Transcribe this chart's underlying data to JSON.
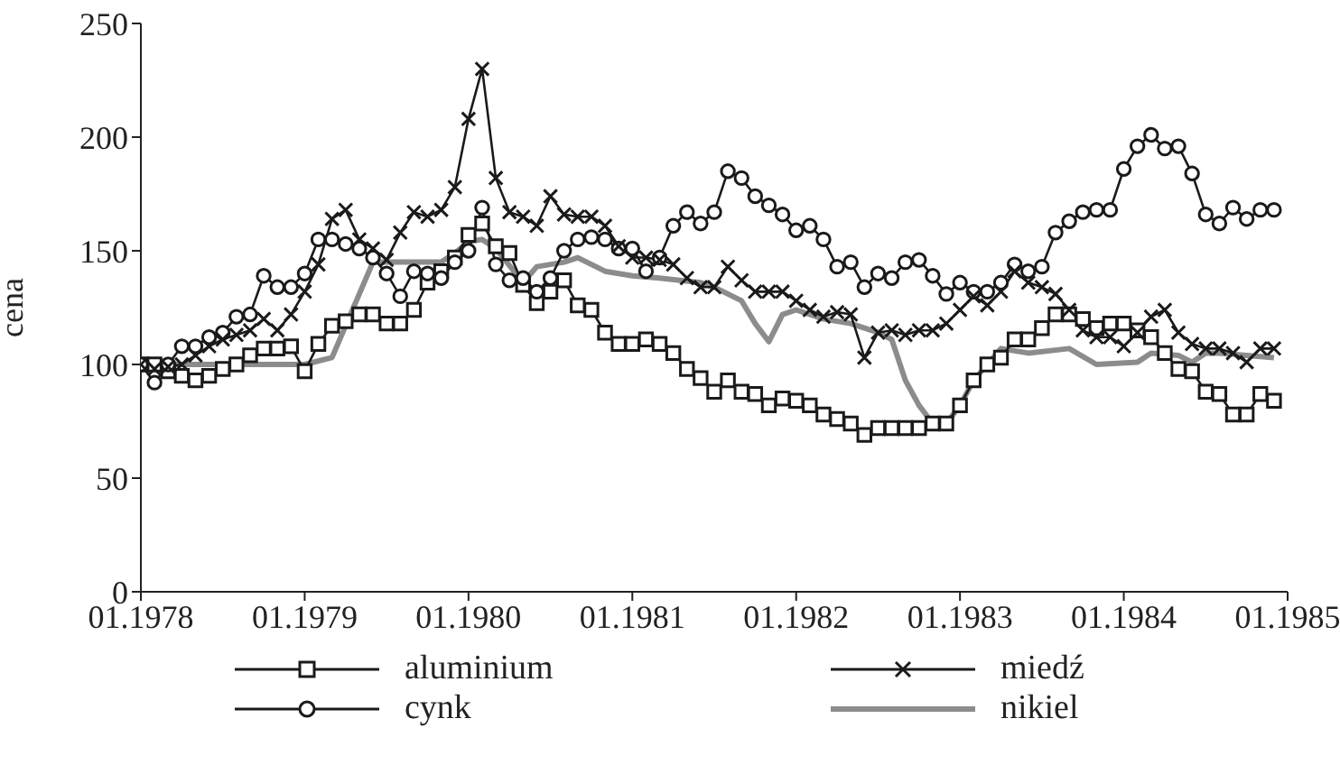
{
  "chart_data": {
    "type": "line",
    "ylabel": "cena",
    "legend": "bottom",
    "grid": false,
    "xlim": [
      "1978-01",
      "1985-01"
    ],
    "xticks": [
      {
        "value": "1978-01",
        "label": "01.1978"
      },
      {
        "value": "1979-01",
        "label": "01.1979"
      },
      {
        "value": "1980-01",
        "label": "01.1980"
      },
      {
        "value": "1981-01",
        "label": "01.1981"
      },
      {
        "value": "1982-01",
        "label": "01.1982"
      },
      {
        "value": "1983-01",
        "label": "01.1983"
      },
      {
        "value": "1984-01",
        "label": "01.1984"
      },
      {
        "value": "1985-01",
        "label": "01.1985"
      }
    ],
    "ylim": [
      0,
      250
    ],
    "yticks": [
      0,
      50,
      100,
      150,
      200,
      250
    ],
    "x": [
      "1978-01",
      "1978-02",
      "1978-03",
      "1978-04",
      "1978-05",
      "1978-06",
      "1978-07",
      "1978-08",
      "1978-09",
      "1978-10",
      "1978-11",
      "1978-12",
      "1979-01",
      "1979-02",
      "1979-03",
      "1979-04",
      "1979-05",
      "1979-06",
      "1979-07",
      "1979-08",
      "1979-09",
      "1979-10",
      "1979-11",
      "1979-12",
      "1980-01",
      "1980-02",
      "1980-03",
      "1980-04",
      "1980-05",
      "1980-06",
      "1980-07",
      "1980-08",
      "1980-09",
      "1980-10",
      "1980-11",
      "1980-12",
      "1981-01",
      "1981-02",
      "1981-03",
      "1981-04",
      "1981-05",
      "1981-06",
      "1981-07",
      "1981-08",
      "1981-09",
      "1981-10",
      "1981-11",
      "1981-12",
      "1982-01",
      "1982-02",
      "1982-03",
      "1982-04",
      "1982-05",
      "1982-06",
      "1982-07",
      "1982-08",
      "1982-09",
      "1982-10",
      "1982-11",
      "1982-12",
      "1983-01",
      "1983-02",
      "1983-03",
      "1983-04",
      "1983-05",
      "1983-06",
      "1983-07",
      "1983-08",
      "1983-09",
      "1983-10",
      "1983-11",
      "1983-12",
      "1984-01",
      "1984-02",
      "1984-03",
      "1984-04",
      "1984-05",
      "1984-06",
      "1984-07",
      "1984-08",
      "1984-09",
      "1984-10",
      "1984-11",
      "1984-12"
    ],
    "series": [
      {
        "name": "aluminium",
        "color": "#1a1a1a",
        "marker": "square",
        "values": [
          100,
          100,
          97,
          95,
          93,
          95,
          98,
          100,
          104,
          107,
          107,
          108,
          97,
          109,
          117,
          119,
          122,
          122,
          118,
          118,
          124,
          136,
          141,
          147,
          157,
          162,
          152,
          149,
          135,
          127,
          132,
          137,
          126,
          124,
          114,
          109,
          109,
          111,
          109,
          105,
          98,
          94,
          88,
          93,
          88,
          87,
          82,
          85,
          84,
          82,
          78,
          76,
          74,
          69,
          72,
          72,
          72,
          72,
          74,
          74,
          82,
          93,
          100,
          103,
          111,
          111,
          116,
          122,
          122,
          120,
          116,
          118,
          118,
          115,
          112,
          105,
          98,
          97,
          88,
          87,
          78,
          78,
          87,
          84
        ]
      },
      {
        "name": "cynk",
        "color": "#1a1a1a",
        "marker": "circle",
        "values": [
          100,
          92,
          100,
          108,
          108,
          112,
          114,
          121,
          122,
          139,
          134,
          134,
          140,
          155,
          155,
          153,
          151,
          147,
          140,
          130,
          141,
          140,
          138,
          145,
          150,
          169,
          144,
          137,
          138,
          132,
          138,
          150,
          155,
          156,
          155,
          151,
          151,
          141,
          147,
          161,
          167,
          162,
          167,
          185,
          182,
          174,
          170,
          166,
          159,
          161,
          155,
          143,
          145,
          134,
          140,
          138,
          145,
          146,
          139,
          131,
          136,
          132,
          132,
          136,
          144,
          141,
          143,
          158,
          163,
          167,
          168,
          168,
          186,
          196,
          201,
          195,
          196,
          184,
          166,
          162,
          169,
          164,
          168,
          168
        ]
      },
      {
        "name": "miedź",
        "color": "#1a1a1a",
        "marker": "cross",
        "values": [
          100,
          98,
          99,
          100,
          104,
          108,
          111,
          113,
          115,
          120,
          115,
          122,
          132,
          144,
          164,
          168,
          155,
          151,
          146,
          158,
          167,
          165,
          168,
          178,
          208,
          230,
          182,
          167,
          165,
          161,
          174,
          166,
          165,
          165,
          161,
          152,
          147,
          147,
          146,
          144,
          138,
          134,
          134,
          143,
          137,
          132,
          132,
          132,
          128,
          124,
          121,
          123,
          122,
          103,
          114,
          115,
          113,
          115,
          115,
          118,
          124,
          130,
          126,
          132,
          141,
          136,
          134,
          131,
          124,
          115,
          112,
          112,
          108,
          114,
          121,
          124,
          114,
          109,
          107,
          107,
          105,
          101,
          107,
          107
        ]
      },
      {
        "name": "nikiel",
        "color": "#8c8c8c",
        "marker": "none",
        "x": [
          "1978-01",
          "1979-01",
          "1979-03",
          "1979-06",
          "1979-11",
          "1979-12",
          "1980-01",
          "1980-02",
          "1980-03",
          "1980-05",
          "1980-06",
          "1980-08",
          "1980-09",
          "1980-11",
          "1981-01",
          "1981-03",
          "1981-06",
          "1981-07",
          "1981-09",
          "1981-10",
          "1981-11",
          "1981-12",
          "1982-01",
          "1982-03",
          "1982-05",
          "1982-07",
          "1982-08",
          "1982-09",
          "1982-10",
          "1982-11",
          "1982-12",
          "1983-01",
          "1983-02",
          "1983-04",
          "1983-06",
          "1983-09",
          "1983-11",
          "1984-02",
          "1984-03",
          "1984-05",
          "1984-06",
          "1984-07",
          "1984-08",
          "1984-10",
          "1984-12"
        ],
        "values": [
          100,
          100,
          103,
          145,
          145,
          149,
          154,
          155,
          151,
          136,
          143,
          145,
          147,
          141,
          139,
          138,
          136,
          134,
          128,
          118,
          110,
          122,
          124,
          120,
          118,
          114,
          111,
          93,
          82,
          74,
          74,
          82,
          93,
          107,
          105,
          107,
          100,
          101,
          105,
          104,
          101,
          105,
          105,
          104,
          103
        ]
      }
    ]
  }
}
